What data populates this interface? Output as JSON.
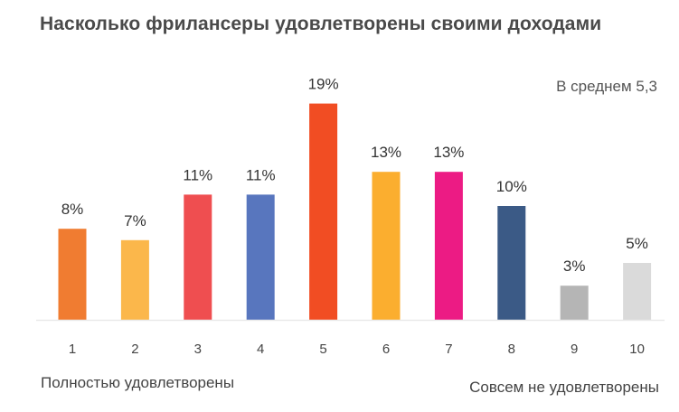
{
  "title": "Насколько фрилансеры удовлетворены своими доходами",
  "average_label": "В среднем 5,3",
  "scale_left_label": "Полностью удовлетворены",
  "scale_right_label": "Совсем не удовлетворены",
  "chart_data": {
    "type": "bar",
    "title": "Насколько фрилансеры удовлетворены своими доходами",
    "categories": [
      "1",
      "2",
      "3",
      "4",
      "5",
      "6",
      "7",
      "8",
      "9",
      "10"
    ],
    "values": [
      8,
      7,
      11,
      11,
      19,
      13,
      13,
      10,
      3,
      5
    ],
    "value_labels": [
      "8%",
      "7%",
      "11%",
      "11%",
      "19%",
      "13%",
      "13%",
      "10%",
      "3%",
      "5%"
    ],
    "bar_colors": [
      "#f07c31",
      "#fbb74b",
      "#ef4e50",
      "#5876be",
      "#f14d23",
      "#fbae2f",
      "#ec1b84",
      "#3b5a86",
      "#b5b5b5",
      "#dadada"
    ],
    "ylim": [
      0,
      20
    ],
    "xlabel": "",
    "ylabel": "",
    "grid": false,
    "legend": "none"
  }
}
